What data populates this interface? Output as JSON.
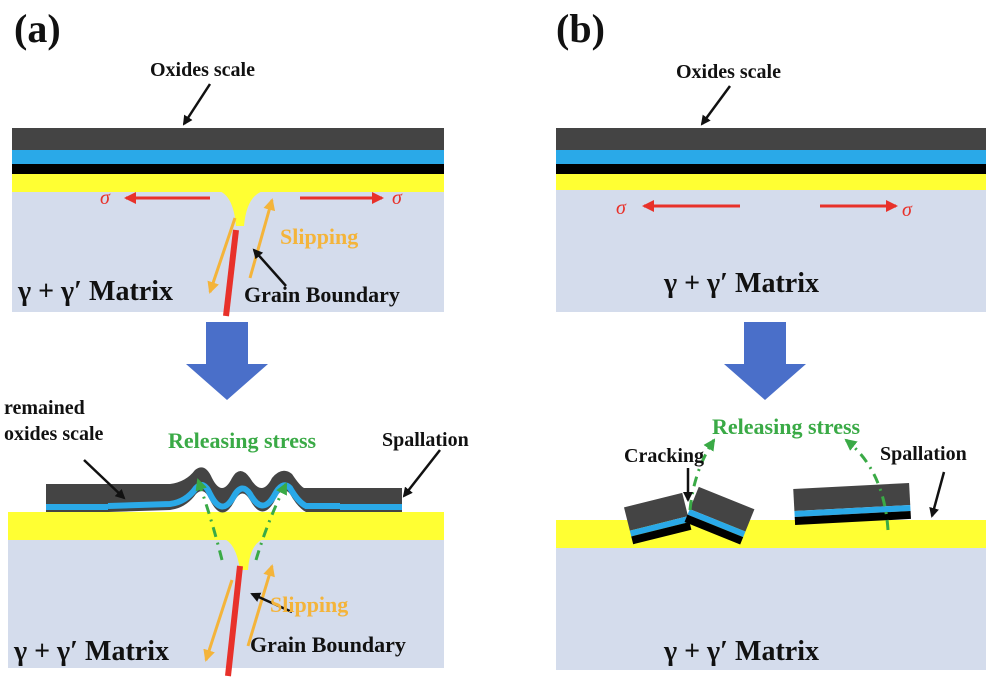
{
  "panels": {
    "a": {
      "label": "(a)",
      "oxides_scale": "Oxides scale",
      "sigma_left": "σ",
      "sigma_right": "σ",
      "slipping_top": "Slipping",
      "matrix_top": "γ + γ′ Matrix",
      "grain_boundary_top": "Grain Boundary",
      "remained_line1": "remained",
      "remained_line2": "oxides scale",
      "releasing_stress": "Releasing stress",
      "spallation": "Spallation",
      "slipping_bottom": "Slipping",
      "matrix_bottom": "γ + γ′ Matrix",
      "grain_boundary_bottom": "Grain Boundary"
    },
    "b": {
      "label": "(b)",
      "oxides_scale": "Oxides scale",
      "sigma_left": "σ",
      "sigma_right": "σ",
      "matrix_top": "γ + γ′ Matrix",
      "releasing_stress": "Releasing stress",
      "cracking": "Cracking",
      "spallation": "Spallation",
      "matrix_bottom": "γ + γ′ Matrix"
    }
  },
  "colors": {
    "matrix": "#d4dcec",
    "yellow_layer": "#ffff33",
    "dark_oxide": "#444444",
    "blue_layer": "#2aa9e8",
    "black_layer": "#000000",
    "big_arrow": "#4a6fc9",
    "stress_arrow": "#e8312a",
    "grain_boundary": "#e8312a",
    "slip_arrow": "#f4b43a",
    "release_arrow": "#3aaa46"
  }
}
